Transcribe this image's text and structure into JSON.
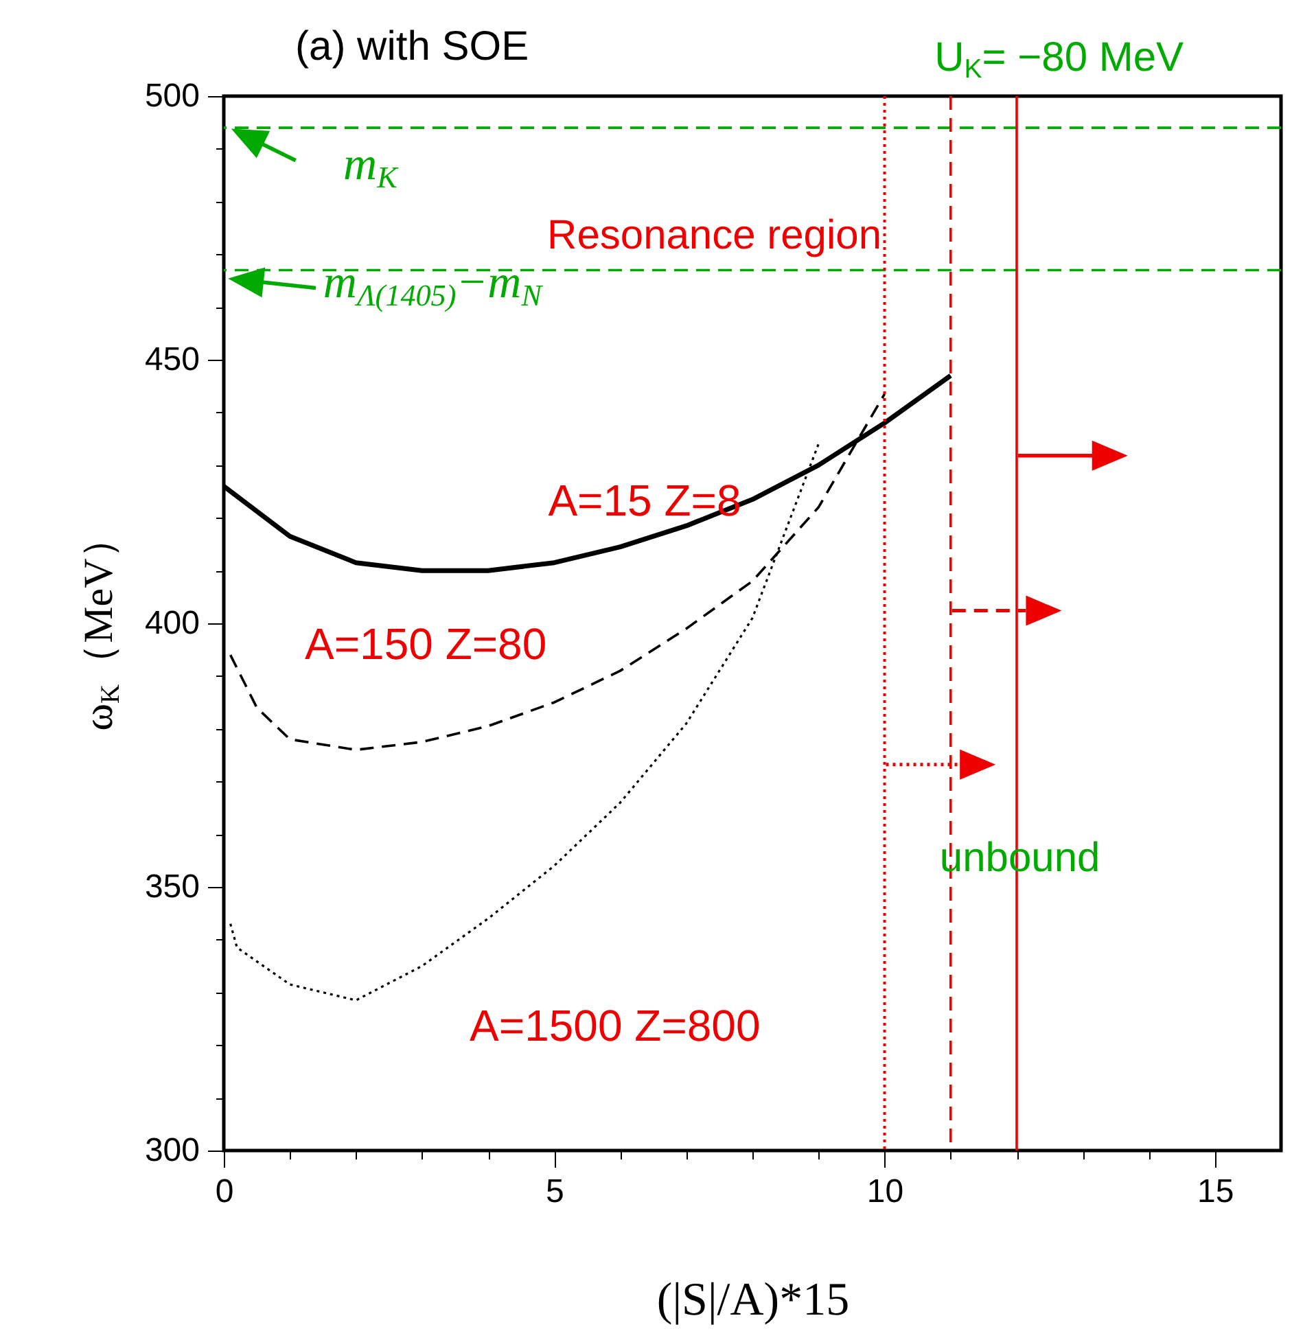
{
  "chart_data": {
    "type": "line",
    "title": "(a) with SOE",
    "xlabel": "(|S|/A)*15",
    "ylabel": "ω$_{K}$（MeV）",
    "xlim": [
      0,
      16
    ],
    "ylim": [
      300,
      500
    ],
    "xticks": [
      0,
      {
        "value": 1,
        "label": null
      },
      {
        "value": 2,
        "label": null
      },
      {
        "value": 3,
        "label": null
      },
      {
        "value": 4,
        "label": null
      },
      5,
      {
        "value": 6,
        "label": null
      },
      {
        "value": 7,
        "label": null
      },
      {
        "value": 8,
        "label": null
      },
      {
        "value": 9,
        "label": null
      },
      10,
      {
        "value": 11,
        "label": null
      },
      {
        "value": 12,
        "label": null
      },
      {
        "value": 13,
        "label": null
      },
      {
        "value": 14,
        "label": null
      },
      15
    ],
    "yticks": [
      300,
      {
        "value": 310,
        "label": null
      },
      {
        "value": 320,
        "label": null
      },
      {
        "value": 330,
        "label": null
      },
      {
        "value": 340,
        "label": null
      },
      350,
      {
        "value": 360,
        "label": null
      },
      {
        "value": 370,
        "label": null
      },
      {
        "value": 380,
        "label": null
      },
      {
        "value": 390,
        "label": null
      },
      400,
      {
        "value": 410,
        "label": null
      },
      {
        "value": 420,
        "label": null
      },
      {
        "value": 430,
        "label": null
      },
      {
        "value": 440,
        "label": null
      },
      450,
      {
        "value": 460,
        "label": null
      },
      {
        "value": 470,
        "label": null
      },
      {
        "value": 480,
        "label": null
      },
      {
        "value": 490,
        "label": null
      },
      500
    ],
    "series": [
      {
        "name": "A=15  Z=8",
        "color": "#000000",
        "line_style": "solid",
        "x": [
          0,
          1,
          2,
          3,
          4,
          5,
          6,
          7,
          8,
          9,
          10,
          11
        ],
        "values": [
          426,
          416.5,
          411.5,
          410,
          410,
          411.5,
          414.5,
          418.5,
          423.5,
          430,
          438,
          447
        ]
      },
      {
        "name": "A=150  Z=80",
        "color": "#000000",
        "line_style": "dashed",
        "x": [
          0.1,
          0.5,
          1,
          2,
          3,
          4,
          5,
          6,
          7,
          8,
          9,
          10
        ],
        "values": [
          394,
          384,
          378,
          376,
          377.5,
          380.5,
          385,
          391,
          399,
          408,
          422,
          443.5
        ]
      },
      {
        "name": "A=1500  Z=800",
        "color": "#000000",
        "line_style": "dotted",
        "x": [
          0.1,
          0.2,
          1,
          2,
          3,
          4,
          5,
          6,
          7,
          8,
          9
        ],
        "values": [
          343,
          338.5,
          331.5,
          328.5,
          335,
          344,
          354,
          366,
          381,
          401,
          434
        ]
      }
    ],
    "ref_lines": [
      {
        "axis": "y",
        "value": 494,
        "label": "m$_{K}$",
        "color": "#00aa00",
        "line_style": "dashed"
      },
      {
        "axis": "y",
        "value": 467,
        "label": "m$_{Λ(1405)}$−m$_{N}$",
        "color": "#00aa00",
        "line_style": "dashed"
      },
      {
        "axis": "x",
        "value": 10,
        "color": "#ee0000",
        "line_style": "dotted"
      },
      {
        "axis": "x",
        "value": 11,
        "color": "#ee0000",
        "line_style": "dashed"
      },
      {
        "axis": "x",
        "value": 12,
        "color": "#ee0000",
        "line_style": "solid"
      }
    ],
    "annotations": [
      "U$_{K}$= −80 MeV",
      "Resonance region",
      "unbound"
    ]
  }
}
